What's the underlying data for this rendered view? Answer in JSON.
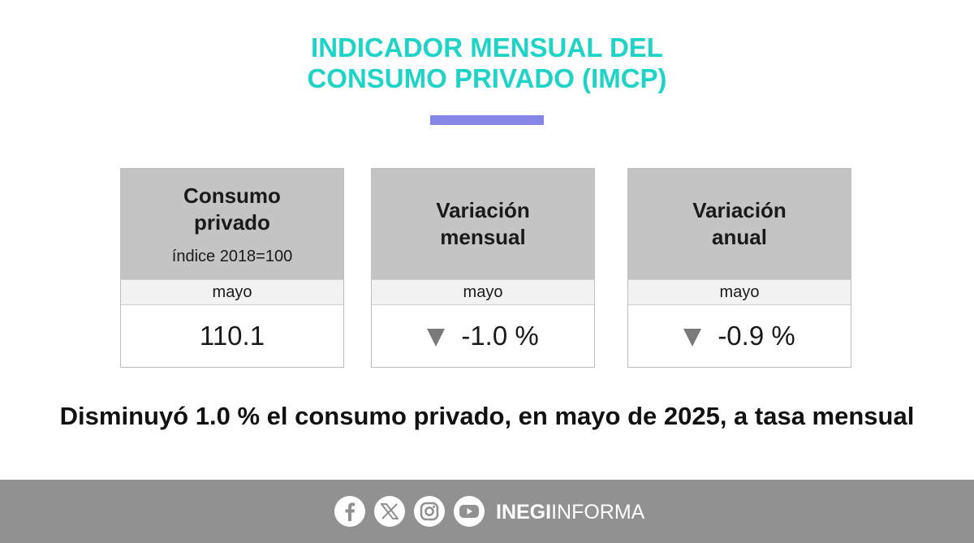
{
  "title": {
    "line1": "INDICADOR MENSUAL DEL",
    "line2": "CONSUMO PRIVADO (IMCP)"
  },
  "cards": [
    {
      "heading_line1": "Consumo",
      "heading_line2": "privado",
      "subheading": "índice 2018=100",
      "period": "mayo",
      "value": "110.1",
      "trend": "none"
    },
    {
      "heading_line1": "Variación",
      "heading_line2": "mensual",
      "period": "mayo",
      "value": "-1.0 %",
      "trend": "down"
    },
    {
      "heading_line1": "Variación",
      "heading_line2": "anual",
      "period": "mayo",
      "value": "-0.9 %",
      "trend": "down"
    }
  ],
  "headline": "Disminuyó 1.0 % el consumo privado, en mayo de 2025, a tasa mensual",
  "footer": {
    "social_icons": [
      "facebook-icon",
      "x-icon",
      "instagram-icon",
      "youtube-icon"
    ],
    "brand_bold": "INEGI",
    "brand_regular": "INFORMA"
  },
  "colors": {
    "title": "#1fd3c6",
    "accent_bar": "#8586e6",
    "card_header": "#c4c4c4",
    "footer": "#919191",
    "trend_down": "#7a7a7a"
  }
}
